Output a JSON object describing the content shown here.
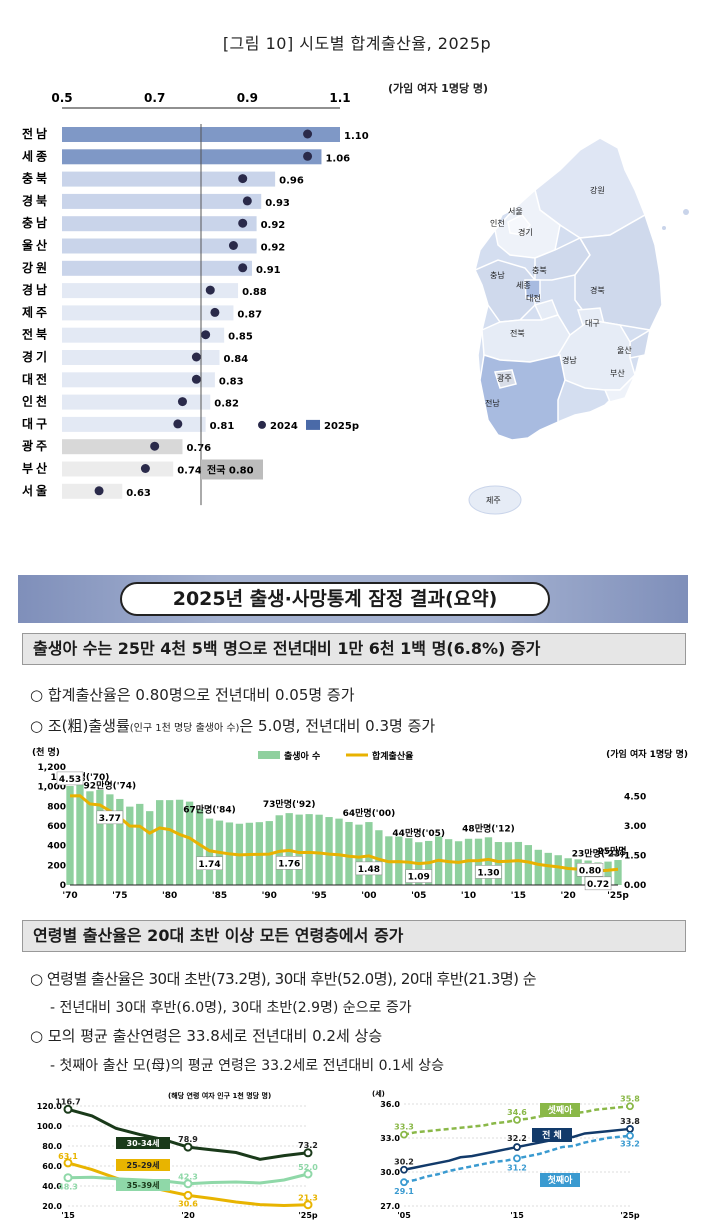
{
  "figure_title": "[그림 10] 시도별 합계출산율, 2025p",
  "map_unit": "(가임 여자 1명당 명)",
  "bar_axis": [
    "0.5",
    "0.7",
    "0.9",
    "1.1"
  ],
  "regions": [
    {
      "name": "전남",
      "v2025": 1.1,
      "v2024": 1.03,
      "label": "1.10",
      "color": "#7f98c6"
    },
    {
      "name": "세종",
      "v2025": 1.06,
      "v2024": 1.03,
      "label": "1.06",
      "color": "#7f98c6"
    },
    {
      "name": "충북",
      "v2025": 0.96,
      "v2024": 0.89,
      "label": "0.96",
      "color": "#c9d4ea"
    },
    {
      "name": "경북",
      "v2025": 0.93,
      "v2024": 0.9,
      "label": "0.93",
      "color": "#c9d4ea"
    },
    {
      "name": "충남",
      "v2025": 0.92,
      "v2024": 0.89,
      "label": "0.92",
      "color": "#c9d4ea"
    },
    {
      "name": "울산",
      "v2025": 0.92,
      "v2024": 0.87,
      "label": "0.92",
      "color": "#c9d4ea"
    },
    {
      "name": "강원",
      "v2025": 0.91,
      "v2024": 0.89,
      "label": "0.91",
      "color": "#c9d4ea"
    },
    {
      "name": "경남",
      "v2025": 0.88,
      "v2024": 0.82,
      "label": "0.88",
      "color": "#e3e9f4"
    },
    {
      "name": "제주",
      "v2025": 0.87,
      "v2024": 0.83,
      "label": "0.87",
      "color": "#e3e9f4"
    },
    {
      "name": "전북",
      "v2025": 0.85,
      "v2024": 0.81,
      "label": "0.85",
      "color": "#e3e9f4"
    },
    {
      "name": "경기",
      "v2025": 0.84,
      "v2024": 0.79,
      "label": "0.84",
      "color": "#e3e9f4"
    },
    {
      "name": "대전",
      "v2025": 0.83,
      "v2024": 0.79,
      "label": "0.83",
      "color": "#e3e9f4"
    },
    {
      "name": "인천",
      "v2025": 0.82,
      "v2024": 0.76,
      "label": "0.82",
      "color": "#e3e9f4"
    },
    {
      "name": "대구",
      "v2025": 0.81,
      "v2024": 0.75,
      "label": "0.81",
      "color": "#e3e9f4"
    },
    {
      "name": "광주",
      "v2025": 0.76,
      "v2024": 0.7,
      "label": "0.76",
      "color": "#d8d8d8"
    },
    {
      "name": "부산",
      "v2025": 0.74,
      "v2024": 0.68,
      "label": "0.74",
      "color": "#ececec"
    },
    {
      "name": "서울",
      "v2025": 0.63,
      "v2024": 0.58,
      "label": "0.63",
      "color": "#ececec"
    }
  ],
  "national_label": "전국 0.80",
  "national_value": 0.8,
  "legend": {
    "l2024": "2024",
    "l2025": "2025p"
  },
  "map_labels": [
    "강원",
    "서울",
    "인천",
    "경기",
    "충북",
    "충남",
    "세종",
    "대전",
    "경북",
    "대구",
    "전북",
    "울산",
    "경남",
    "부산",
    "광주",
    "전남",
    "제주"
  ],
  "banner_title": "2025년 출생·사망통계 잠정 결과(요약)",
  "section1": "출생아 수는 25만 4천 5백 명으로 전년대비 1만 6천 1백 명(6.8%) 증가",
  "bullet1": "○ 합계출산율은 0.80명으로 전년대비 0.05명 증가",
  "bullet2a": "○ 조(粗)출생률",
  "bullet2b": "(인구 1천 명당 출생아 수)",
  "bullet2c": "은 5.0명, 전년대비 0.3명 증가",
  "chart_data": [
    {
      "type": "bar",
      "title": "",
      "ylabel_left": "(천 명)",
      "ylabel_right": "(가임 여자 1명당 명)",
      "legend": [
        "출생아 수",
        "합계출산율"
      ],
      "yticks_left": [
        "0",
        "200",
        "400",
        "600",
        "800",
        "1,000",
        "1,200"
      ],
      "yticks_right": [
        "0.00",
        "1.50",
        "3.00",
        "4.50"
      ],
      "xticks": [
        "'70",
        "'75",
        "'80",
        "'85",
        "'90",
        "'95",
        "'00",
        "'05",
        "'10",
        "'15",
        "'20",
        "'25p"
      ],
      "births_x": [
        1970,
        1971,
        1972,
        1973,
        1974,
        1975,
        1976,
        1977,
        1978,
        1979,
        1980,
        1981,
        1982,
        1983,
        1984,
        1985,
        1986,
        1987,
        1988,
        1989,
        1990,
        1991,
        1992,
        1993,
        1994,
        1995,
        1996,
        1997,
        1998,
        1999,
        2000,
        2001,
        2002,
        2003,
        2004,
        2005,
        2006,
        2007,
        2008,
        2009,
        2010,
        2011,
        2012,
        2013,
        2014,
        2015,
        2016,
        2017,
        2018,
        2019,
        2020,
        2021,
        2022,
        2023,
        2024,
        2025
      ],
      "births": [
        1007,
        1025,
        953,
        966,
        922,
        875,
        797,
        825,
        751,
        863,
        863,
        867,
        848,
        770,
        675,
        655,
        636,
        623,
        633,
        639,
        650,
        709,
        731,
        716,
        721,
        715,
        691,
        675,
        641,
        614,
        640,
        557,
        495,
        493,
        476,
        435,
        448,
        494,
        466,
        445,
        470,
        471,
        485,
        437,
        435,
        438,
        406,
        358,
        327,
        303,
        272,
        261,
        249,
        230,
        238,
        254
      ],
      "tfr": [
        4.53,
        4.54,
        4.12,
        4.07,
        3.77,
        3.43,
        3.0,
        2.99,
        2.64,
        2.9,
        2.82,
        2.57,
        2.39,
        2.06,
        1.74,
        1.66,
        1.58,
        1.53,
        1.55,
        1.56,
        1.57,
        1.71,
        1.76,
        1.65,
        1.66,
        1.63,
        1.57,
        1.54,
        1.46,
        1.42,
        1.48,
        1.31,
        1.18,
        1.19,
        1.16,
        1.09,
        1.13,
        1.26,
        1.19,
        1.15,
        1.23,
        1.24,
        1.3,
        1.19,
        1.21,
        1.24,
        1.17,
        1.05,
        0.98,
        0.92,
        0.84,
        0.81,
        0.78,
        0.72,
        0.75,
        0.8
      ],
      "births_labels": [
        "101만명('70)",
        "92만명('74)",
        "67만명('84)",
        "73만명('92)",
        "64만명('00)",
        "44만명('05)",
        "48만명('12)",
        "23만명('23)",
        "25만명"
      ],
      "tfr_labels": [
        "4.53",
        "3.77",
        "1.74",
        "1.76",
        "1.48",
        "1.09",
        "1.30",
        "0.72",
        "0.80"
      ]
    },
    {
      "type": "line",
      "title": "",
      "unit_note": "(해당 연령 여자 인구 1천 명당 명)",
      "x": [
        "'15",
        "'16",
        "'17",
        "'18",
        "'19",
        "'20",
        "'21",
        "'22",
        "'23",
        "'24",
        "'25p"
      ],
      "xticks": [
        "'15",
        "'20",
        "'25p"
      ],
      "yticks": [
        "20.0",
        "40.0",
        "60.0",
        "80.0",
        "100.0",
        "120.0"
      ],
      "series": [
        {
          "name": "30-34세",
          "values": [
            116.7,
            110.1,
            97.7,
            91.4,
            86.3,
            78.9,
            76.1,
            73.5,
            66.7,
            70.4,
            73.2
          ],
          "color": "#1a3a1a"
        },
        {
          "name": "25-29세",
          "values": [
            63.1,
            56.4,
            47.9,
            41.0,
            35.7,
            30.6,
            27.5,
            24.0,
            21.4,
            20.5,
            21.3
          ],
          "color": "#e8b400"
        },
        {
          "name": "35-39세",
          "values": [
            48.3,
            48.7,
            47.2,
            46.1,
            45.0,
            42.3,
            43.5,
            44.0,
            43.0,
            46.0,
            52.0
          ],
          "color": "#8fd8a8"
        }
      ],
      "point_labels": [
        "116.7",
        "78.9",
        "73.2",
        "63.1",
        "30.6",
        "21.3",
        "48.3",
        "42.3",
        "52.0"
      ]
    },
    {
      "type": "line",
      "title": "",
      "unit": "(세)",
      "x": [
        "'05",
        "'06",
        "'07",
        "'08",
        "'09",
        "'10",
        "'11",
        "'12",
        "'13",
        "'14",
        "'15",
        "'16",
        "'17",
        "'18",
        "'19",
        "'20",
        "'21",
        "'22",
        "'23",
        "'24",
        "'25p"
      ],
      "xticks": [
        "'05",
        "'15",
        "'25p"
      ],
      "yticks": [
        "27.0",
        "30.0",
        "33.0",
        "36.0"
      ],
      "series": [
        {
          "name": "셋째아",
          "values": [
            33.3,
            33.5,
            33.6,
            33.7,
            33.8,
            33.9,
            34.0,
            34.1,
            34.3,
            34.4,
            34.6,
            34.7,
            34.9,
            35.0,
            35.1,
            35.2,
            35.3,
            35.5,
            35.6,
            35.7,
            35.8
          ],
          "color": "#8ab848"
        },
        {
          "name": "전 체",
          "values": [
            30.2,
            30.4,
            30.6,
            30.8,
            31.0,
            31.3,
            31.4,
            31.6,
            31.8,
            32.0,
            32.2,
            32.4,
            32.6,
            32.8,
            33.0,
            33.1,
            33.4,
            33.5,
            33.6,
            33.7,
            33.8
          ],
          "color": "#123a6a"
        },
        {
          "name": "첫째아",
          "values": [
            29.1,
            29.3,
            29.6,
            29.8,
            30.1,
            30.3,
            30.5,
            30.7,
            30.9,
            31.0,
            31.2,
            31.4,
            31.6,
            31.9,
            32.2,
            32.3,
            32.6,
            32.8,
            33.0,
            33.1,
            33.2
          ],
          "color": "#3a9ad0"
        }
      ],
      "point_labels": [
        "33.3",
        "34.6",
        "35.8",
        "30.2",
        "32.2",
        "33.8",
        "29.1",
        "31.2",
        "33.2"
      ]
    }
  ],
  "section2": "연령별 출산율은 20대 초반 이상 모든 연령층에서 증가",
  "bullet3": "○ 연령별 출산율은 30대 초반(73.2명), 30대 후반(52.0명), 20대 후반(21.3명) 순",
  "sub3": "- 전년대비 30대 후반(6.0명), 30대 초반(2.9명) 순으로 증가",
  "bullet4": "○ 모의 평균 출산연령은 33.8세로 전년대비 0.2세 상승",
  "sub4": "- 첫째아 출산 모(母)의 평균 연령은 33.2세로 전년대비 0.1세 상승"
}
